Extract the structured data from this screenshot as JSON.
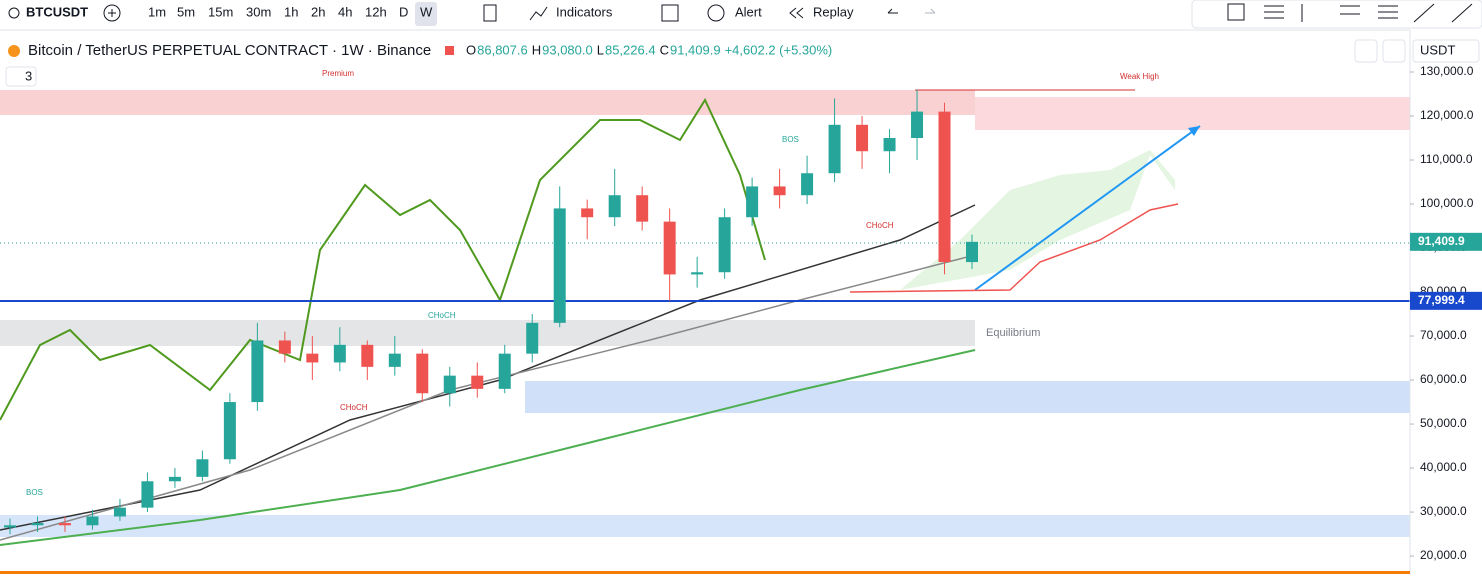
{
  "toolbar": {
    "symbol": "BTCUSDT",
    "intervals": [
      "1m",
      "5m",
      "15m",
      "30m",
      "1h",
      "2h",
      "4h",
      "12h",
      "D",
      "W"
    ],
    "indicators": "Indicators",
    "alert": "Alert",
    "replay": "Replay"
  },
  "legend": {
    "title": "Bitcoin / TetherUS PERPETUAL CONTRACT · 1W · Binance",
    "ohlc": [
      {
        "key": "O",
        "value": "86,807.6"
      },
      {
        "key": "H",
        "value": "93,080.0"
      },
      {
        "key": "L",
        "value": "85,226.4"
      },
      {
        "key": "C",
        "value": "91,409.9"
      }
    ],
    "change": "+4,602.2 (+5.30%)",
    "indicator_count": "3"
  },
  "currency": "USDT",
  "chart_data": {
    "type": "candlestick",
    "open": [
      26500,
      27000,
      27500,
      27000,
      29000,
      31000,
      37000,
      38000,
      42000,
      55000,
      69000,
      66000,
      64000,
      68000,
      63000,
      66000,
      57000,
      61000,
      58000,
      66000,
      73000,
      99000,
      97000,
      102000,
      96000,
      84000,
      84500,
      97000,
      104000,
      102000,
      107000,
      118000,
      112000,
      115000,
      121000,
      86807.6
    ],
    "high": [
      28500,
      29000,
      29000,
      30500,
      33000,
      39000,
      40000,
      44000,
      57000,
      73000,
      71000,
      70000,
      72000,
      69000,
      70000,
      67000,
      63000,
      64000,
      68000,
      75000,
      104000,
      101000,
      108000,
      104000,
      99000,
      88000,
      99000,
      106000,
      108000,
      111000,
      124000,
      120000,
      117000,
      126000,
      123000,
      93080
    ],
    "low": [
      25000,
      25500,
      25500,
      26000,
      28000,
      30000,
      35500,
      37000,
      41000,
      53000,
      64000,
      60000,
      62000,
      60000,
      61000,
      55000,
      54000,
      56000,
      57000,
      64000,
      72000,
      92000,
      95000,
      94000,
      78000,
      81000,
      83000,
      95000,
      99000,
      100000,
      105000,
      108000,
      107000,
      110000,
      84000,
      85226.4
    ],
    "close": [
      27000,
      27500,
      27000,
      29000,
      31000,
      37000,
      38000,
      42000,
      55000,
      69000,
      66000,
      64000,
      68000,
      63000,
      66000,
      57000,
      61000,
      58000,
      66000,
      73000,
      99000,
      97000,
      102000,
      96000,
      84000,
      84500,
      97000,
      104000,
      102000,
      107000,
      118000,
      112000,
      115000,
      121000,
      86807.6,
      91409.9
    ],
    "up_color": "#26a69a",
    "down_color": "#ef5350",
    "ylim": [
      15700,
      140000
    ],
    "yticks": [
      {
        "value": 20000,
        "label": "20,000.0"
      },
      {
        "value": 30000,
        "label": "30,000.0"
      },
      {
        "value": 40000,
        "label": "40,000.0"
      },
      {
        "value": 50000,
        "label": "50,000.0"
      },
      {
        "value": 60000,
        "label": "60,000.0"
      },
      {
        "value": 70000,
        "label": "70,000.0"
      },
      {
        "value": 80000,
        "label": "80,000.0"
      },
      {
        "value": 90000,
        "label": "90,000.0"
      },
      {
        "value": 100000,
        "label": "100,000.0"
      },
      {
        "value": 110000,
        "label": "110,000.0"
      },
      {
        "value": 120000,
        "label": "120,000.0"
      },
      {
        "value": 130000,
        "label": "130,000.0"
      }
    ],
    "price_labels": [
      {
        "value": 91409.9,
        "label": "91,409.9",
        "color": "#26a69a"
      },
      {
        "value": 77999.4,
        "label": "77,999.4",
        "color": "#1848cc"
      }
    ],
    "annotations": [
      "Premium",
      "Weak High",
      "Equilibrium",
      "BOS",
      "CHoCH",
      "CHoCH",
      "CHoCH",
      "BOS"
    ]
  }
}
